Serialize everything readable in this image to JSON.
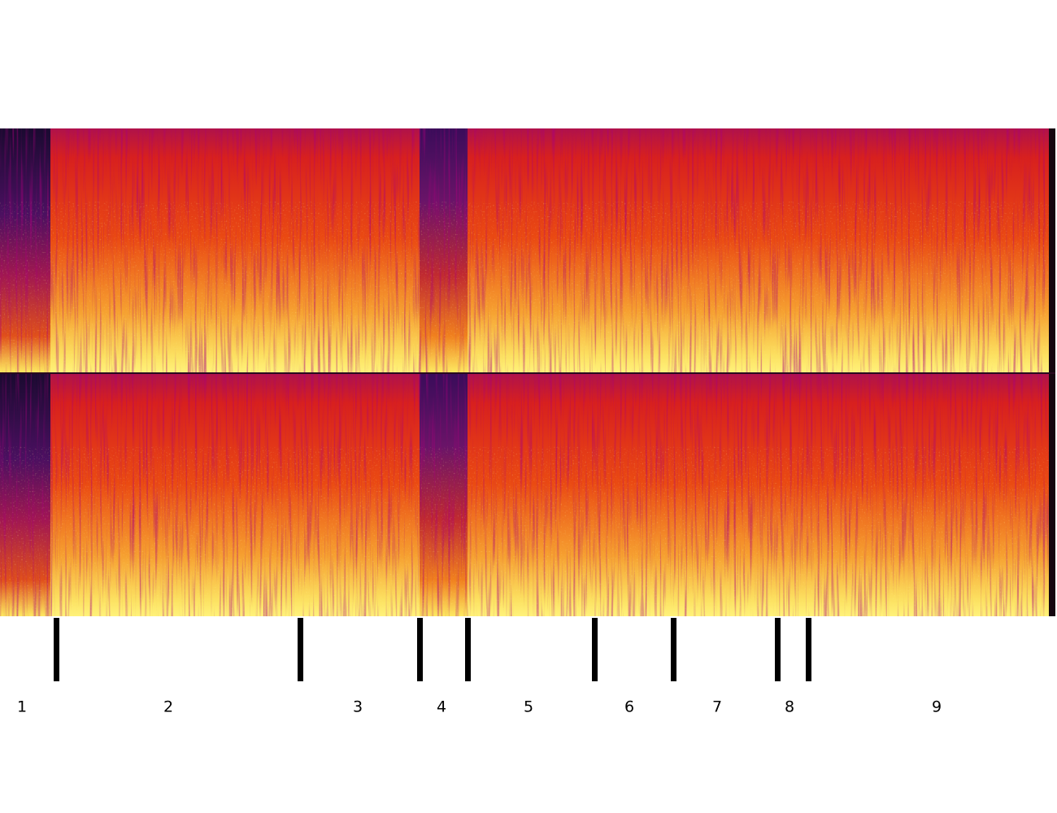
{
  "segments": [
    {
      "label": "1"
    },
    {
      "label": "2"
    },
    {
      "label": "3"
    },
    {
      "label": "4"
    },
    {
      "label": "5"
    },
    {
      "label": "6"
    },
    {
      "label": "7"
    },
    {
      "label": "8"
    },
    {
      "label": "9"
    }
  ]
}
